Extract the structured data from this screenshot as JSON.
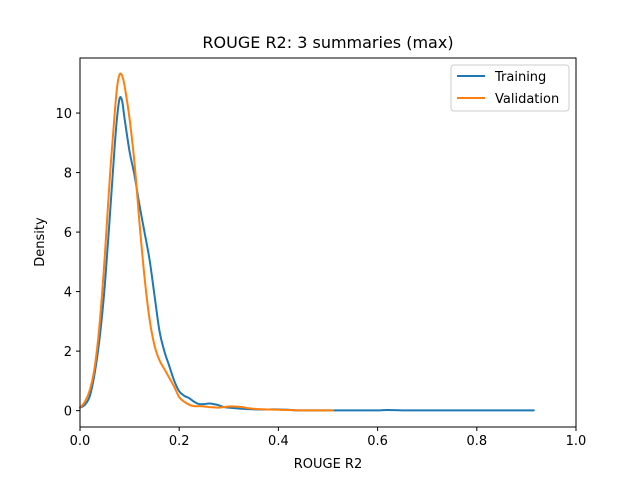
{
  "chart_data": {
    "type": "line",
    "title": "ROUGE R2: 3 summaries (max)",
    "xlabel": "ROUGE R2",
    "ylabel": "Density",
    "xlim": [
      0.0,
      1.0
    ],
    "ylim": [
      -0.55,
      11.85
    ],
    "xticks": [
      0.0,
      0.2,
      0.4,
      0.6,
      0.8,
      1.0
    ],
    "xtick_labels": [
      "0.0",
      "0.2",
      "0.4",
      "0.6",
      "0.8",
      "1.0"
    ],
    "yticks": [
      0,
      2,
      4,
      6,
      8,
      10
    ],
    "ytick_labels": [
      "0",
      "2",
      "4",
      "6",
      "8",
      "10"
    ],
    "grid": false,
    "legend_position": "upper-right",
    "series": [
      {
        "name": "Training",
        "color": "#1f77b4",
        "points": [
          [
            0.0,
            0.1
          ],
          [
            0.01,
            0.2
          ],
          [
            0.02,
            0.5
          ],
          [
            0.03,
            1.3
          ],
          [
            0.04,
            2.5
          ],
          [
            0.05,
            4.2
          ],
          [
            0.06,
            6.5
          ],
          [
            0.07,
            8.9
          ],
          [
            0.075,
            9.9
          ],
          [
            0.08,
            10.5
          ],
          [
            0.085,
            10.4
          ],
          [
            0.09,
            9.8
          ],
          [
            0.1,
            8.7
          ],
          [
            0.11,
            7.9
          ],
          [
            0.12,
            6.9
          ],
          [
            0.13,
            6.0
          ],
          [
            0.14,
            5.1
          ],
          [
            0.15,
            3.9
          ],
          [
            0.16,
            2.7
          ],
          [
            0.17,
            2.0
          ],
          [
            0.18,
            1.5
          ],
          [
            0.19,
            1.0
          ],
          [
            0.2,
            0.65
          ],
          [
            0.21,
            0.5
          ],
          [
            0.22,
            0.42
          ],
          [
            0.23,
            0.3
          ],
          [
            0.24,
            0.22
          ],
          [
            0.25,
            0.22
          ],
          [
            0.26,
            0.24
          ],
          [
            0.27,
            0.22
          ],
          [
            0.28,
            0.18
          ],
          [
            0.29,
            0.12
          ],
          [
            0.3,
            0.1
          ],
          [
            0.32,
            0.07
          ],
          [
            0.34,
            0.05
          ],
          [
            0.36,
            0.04
          ],
          [
            0.38,
            0.04
          ],
          [
            0.4,
            0.04
          ],
          [
            0.42,
            0.03
          ],
          [
            0.44,
            0.01
          ],
          [
            0.5,
            0.01
          ],
          [
            0.55,
            0.01
          ],
          [
            0.6,
            0.01
          ],
          [
            0.62,
            0.02
          ],
          [
            0.65,
            0.01
          ],
          [
            0.7,
            0.01
          ],
          [
            0.8,
            0.01
          ],
          [
            0.915,
            0.01
          ]
        ]
      },
      {
        "name": "Validation",
        "color": "#ff7f0e",
        "points": [
          [
            0.0,
            0.1
          ],
          [
            0.01,
            0.3
          ],
          [
            0.02,
            0.7
          ],
          [
            0.03,
            1.5
          ],
          [
            0.04,
            3.0
          ],
          [
            0.05,
            5.2
          ],
          [
            0.06,
            7.8
          ],
          [
            0.07,
            10.0
          ],
          [
            0.075,
            10.9
          ],
          [
            0.08,
            11.3
          ],
          [
            0.085,
            11.25
          ],
          [
            0.09,
            10.9
          ],
          [
            0.1,
            9.8
          ],
          [
            0.11,
            8.3
          ],
          [
            0.12,
            6.3
          ],
          [
            0.13,
            4.5
          ],
          [
            0.14,
            3.1
          ],
          [
            0.15,
            2.2
          ],
          [
            0.16,
            1.7
          ],
          [
            0.17,
            1.4
          ],
          [
            0.18,
            1.1
          ],
          [
            0.19,
            0.8
          ],
          [
            0.2,
            0.45
          ],
          [
            0.21,
            0.3
          ],
          [
            0.22,
            0.2
          ],
          [
            0.23,
            0.15
          ],
          [
            0.24,
            0.15
          ],
          [
            0.25,
            0.14
          ],
          [
            0.26,
            0.12
          ],
          [
            0.27,
            0.11
          ],
          [
            0.28,
            0.1
          ],
          [
            0.29,
            0.12
          ],
          [
            0.3,
            0.14
          ],
          [
            0.31,
            0.14
          ],
          [
            0.32,
            0.13
          ],
          [
            0.33,
            0.11
          ],
          [
            0.34,
            0.08
          ],
          [
            0.36,
            0.05
          ],
          [
            0.38,
            0.04
          ],
          [
            0.4,
            0.03
          ],
          [
            0.42,
            0.02
          ],
          [
            0.45,
            0.01
          ],
          [
            0.5,
            0.01
          ],
          [
            0.51,
            0.01
          ]
        ]
      }
    ]
  }
}
